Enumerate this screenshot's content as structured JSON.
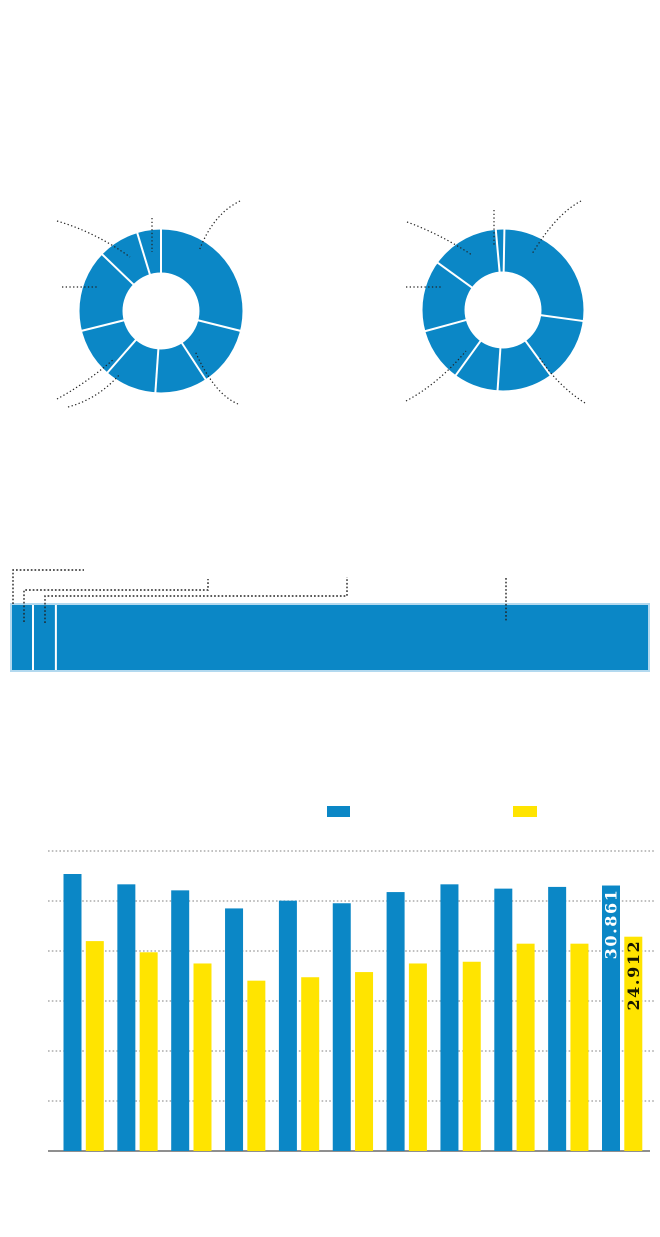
{
  "colors": {
    "primary_blue": "#0b87c6",
    "accent_yellow": "#ffe400",
    "pale_blue_outline": "#b3d9ef",
    "segment_divider": "#ffffff",
    "gridline_gray": "#9a9a9a",
    "axis_gray": "#8f8f8f",
    "leader_line": "#222222",
    "label_on_blue": "#ffffff",
    "label_on_yellow": "#171700"
  },
  "chart_data": [
    {
      "id": "donut-left",
      "type": "pie",
      "subtype": "donut",
      "title": "",
      "start_angle_deg": 0,
      "values_pct": [
        28.9,
        11.9,
        10.3,
        10.3,
        9.7,
        16.1,
        8.1,
        4.7
      ],
      "labels": [
        "",
        "",
        "",
        "",
        "",
        "",
        "",
        ""
      ]
    },
    {
      "id": "donut-right",
      "type": "pie",
      "subtype": "donut",
      "title": "",
      "start_angle_deg": 1,
      "values_pct": [
        26.9,
        12.8,
        11.1,
        8.9,
        10.8,
        14.2,
        13.6,
        1.7
      ],
      "labels": [
        "",
        "",
        "",
        "",
        "",
        "",
        "",
        ""
      ]
    },
    {
      "id": "stacked-bar-chart",
      "type": "bar",
      "subtype": "horizontal-stacked-100pct",
      "title": "",
      "values_pct": [
        3.3,
        3.6,
        93.1
      ],
      "labels": [
        "",
        "",
        ""
      ]
    },
    {
      "id": "grouped-bar-chart",
      "type": "bar",
      "subtype": "grouped-vertical",
      "title": "",
      "categories": [
        "",
        "",
        "",
        "",
        "",
        "",
        "",
        "",
        "",
        "",
        ""
      ],
      "series": [
        {
          "name": "",
          "color_key": "blue",
          "values": [
            32200,
            31000,
            30300,
            28200,
            29100,
            28800,
            30100,
            31000,
            30500,
            30700,
            30861
          ],
          "data_labels": [
            "",
            "",
            "",
            "",
            "",
            "",
            "",
            "",
            "",
            "",
            "30.861"
          ]
        },
        {
          "name": "",
          "color_key": "yellow",
          "values": [
            24400,
            23100,
            21800,
            19800,
            20200,
            20800,
            21800,
            22000,
            24100,
            24100,
            24912
          ],
          "data_labels": [
            "",
            "",
            "",
            "",
            "",
            "",
            "",
            "",
            "",
            "",
            "24.912"
          ]
        }
      ],
      "ylim": [
        0,
        35000
      ],
      "gridlines": "dotted-horizontal",
      "legend": {
        "position": "top",
        "entries": [
          {
            "label": "",
            "color_key": "blue"
          },
          {
            "label": "",
            "color_key": "yellow"
          }
        ]
      }
    }
  ]
}
